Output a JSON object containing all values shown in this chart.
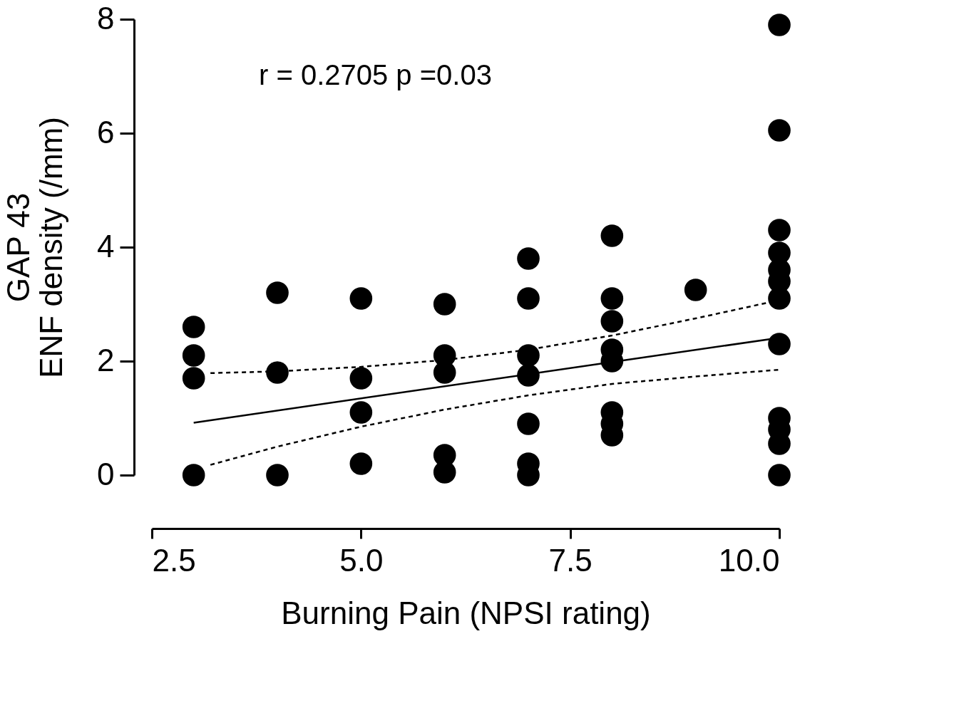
{
  "chart_data": {
    "type": "scatter",
    "xlabel": "Burning Pain (NPSI rating)",
    "ylabel": "GAP 43\nENF density (/mm)",
    "annotations": [
      "r = 0.2705 p =0.03"
    ],
    "xlim": [
      2.5,
      10
    ],
    "xticks": [
      {
        "value": 2.5,
        "label": "2.5"
      },
      {
        "value": 5,
        "label": "5.0"
      },
      {
        "value": 7.5,
        "label": "7.5"
      },
      {
        "value": 10,
        "label": "10.0"
      }
    ],
    "ylim": [
      0,
      8
    ],
    "yticks": [
      0,
      2,
      4,
      6,
      8
    ],
    "grid": false,
    "marker": "circle",
    "series": [
      {
        "color": "#000000",
        "x": [
          3,
          3,
          3,
          3,
          4,
          4,
          4,
          5,
          5,
          5,
          5,
          6,
          6,
          6,
          6,
          6,
          7,
          7,
          7,
          7,
          7,
          7,
          7,
          8,
          8,
          8,
          8,
          8,
          8,
          8,
          8,
          9,
          10,
          10,
          10,
          10,
          10,
          10,
          10,
          10,
          10,
          10,
          10,
          10
        ],
        "values": [
          2.6,
          2.1,
          1.7,
          0,
          3.2,
          1.8,
          0,
          3.1,
          1.7,
          1.1,
          0.2,
          3.0,
          2.1,
          1.8,
          0.35,
          0.05,
          3.8,
          3.1,
          2.1,
          1.75,
          0.9,
          0.2,
          0,
          4.2,
          3.1,
          2.7,
          2.2,
          2.0,
          1.1,
          0.9,
          0.7,
          3.25,
          7.9,
          6.05,
          4.3,
          3.9,
          3.6,
          3.4,
          3.1,
          2.3,
          1.0,
          0.8,
          0.55,
          0.0
        ]
      },
      {
        "type": "line",
        "color": "#000000",
        "line_style": "solid",
        "marker": "none",
        "x": [
          3,
          10
        ],
        "values": [
          0.92,
          2.41
        ]
      },
      {
        "type": "line",
        "color": "#000000",
        "line_style": "dashed",
        "marker": "none",
        "x": [
          3.2,
          4,
          5,
          6,
          7,
          8,
          9,
          10
        ],
        "values": [
          1.79,
          1.82,
          1.9,
          2.02,
          2.2,
          2.45,
          2.75,
          3.07
        ]
      },
      {
        "type": "line",
        "color": "#000000",
        "line_style": "dashed",
        "marker": "none",
        "x": [
          3.2,
          4,
          5,
          6,
          7,
          8,
          9,
          10
        ],
        "values": [
          0.18,
          0.5,
          0.85,
          1.15,
          1.4,
          1.6,
          1.73,
          1.85
        ]
      }
    ]
  }
}
